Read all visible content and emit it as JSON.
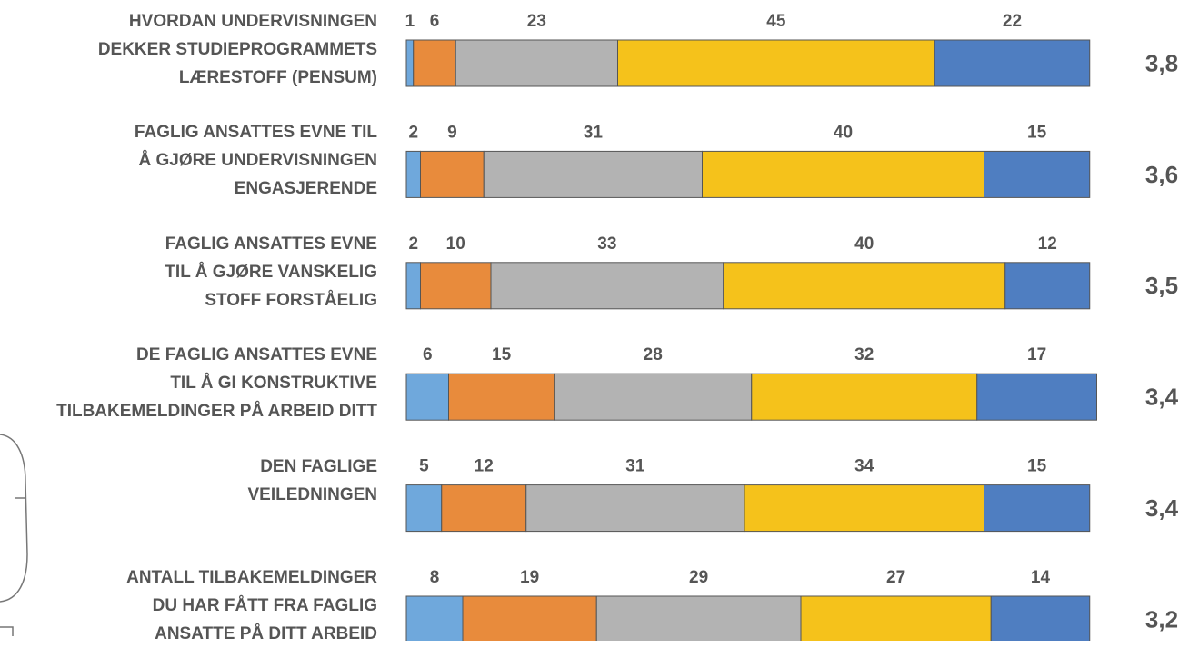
{
  "chart_data": {
    "type": "stacked-bar-horizontal",
    "categories": [
      "HVORDAN UNDERVISNINGEN\nDEKKER STUDIEPROGRAMMETS\nLÆRESTOFF (PENSUM)",
      "FAGLIG ANSATTES EVNE TIL\nÅ GJØRE UNDERVISNINGEN\nENGASJERENDE",
      "FAGLIG ANSATTES EVNE\nTIL Å GJØRE VANSKELIG\nSTOFF FORSTÅELIG",
      "DE FAGLIG ANSATTES EVNE\nTIL Å GI KONSTRUKTIVE\nTILBAKEMELDINGER PÅ ARBEID DITT",
      "DEN FAGLIGE\nVEILEDNINGEN",
      "ANTALL TILBAKEMELDINGER\nDU HAR FÅTT FRA FAGLIG\nANSATTE PÅ DITT ARBEID"
    ],
    "series": [
      {
        "color": "#6fa8dc",
        "values": [
          1,
          2,
          2,
          6,
          5,
          8
        ]
      },
      {
        "color": "#e88b3c",
        "values": [
          6,
          9,
          10,
          15,
          12,
          19
        ]
      },
      {
        "color": "#b3b3b3",
        "values": [
          23,
          31,
          33,
          28,
          31,
          29
        ]
      },
      {
        "color": "#f5c21b",
        "values": [
          45,
          40,
          40,
          32,
          34,
          27
        ]
      },
      {
        "color": "#4f7ec1",
        "values": [
          22,
          15,
          12,
          17,
          15,
          14
        ]
      }
    ],
    "averages": [
      {
        "value": 3.8,
        "label": "3,8"
      },
      {
        "value": 3.6,
        "label": "3,6"
      },
      {
        "value": 3.5,
        "label": "3,5"
      },
      {
        "value": 3.4,
        "label": "3,4"
      },
      {
        "value": 3.4,
        "label": "3,4"
      },
      {
        "value": 3.2,
        "label": "3,2"
      }
    ],
    "xlim": [
      0,
      100
    ]
  }
}
